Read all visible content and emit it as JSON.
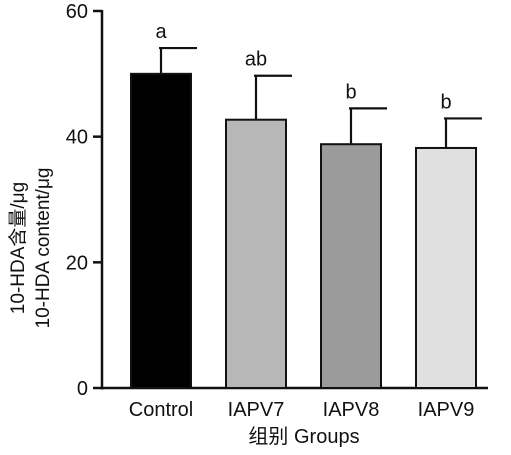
{
  "chart_data": {
    "type": "bar",
    "categories": [
      "Control",
      "IAPV7",
      "IAPV8",
      "IAPV9"
    ],
    "values": [
      50.0,
      42.7,
      38.8,
      38.2
    ],
    "error_upper": [
      54.1,
      49.7,
      44.5,
      42.9
    ],
    "significance_letters": [
      "a",
      "ab",
      "b",
      "b"
    ],
    "bar_colors": [
      "#000000",
      "#b7b7b7",
      "#9b9b9b",
      "#e0e0e0"
    ],
    "ylim": [
      0,
      60
    ],
    "yticks": [
      0,
      20,
      40,
      60
    ],
    "xlabel": "组别 Groups",
    "ylabel_line1": "10-HDA含量/μg",
    "ylabel_line2": "10-HDA content/μg",
    "grid": false,
    "legend": "none"
  }
}
